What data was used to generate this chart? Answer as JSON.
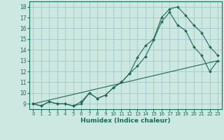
{
  "xlabel": "Humidex (Indice chaleur)",
  "xlim": [
    -0.5,
    23.5
  ],
  "ylim": [
    8.5,
    18.5
  ],
  "xticks": [
    0,
    1,
    2,
    3,
    4,
    5,
    6,
    7,
    8,
    9,
    10,
    11,
    12,
    13,
    14,
    15,
    16,
    17,
    18,
    19,
    20,
    21,
    22,
    23
  ],
  "yticks": [
    9,
    10,
    11,
    12,
    13,
    14,
    15,
    16,
    17,
    18
  ],
  "background_color": "#cce8e0",
  "grid_color": "#aacccc",
  "line_color": "#1a6b5a",
  "line1_x": [
    0,
    1,
    2,
    3,
    4,
    5,
    6,
    7,
    8,
    9,
    10,
    11,
    12,
    13,
    14,
    15,
    16,
    17,
    18,
    19,
    20,
    21,
    22,
    23
  ],
  "line1_y": [
    9.0,
    8.8,
    9.2,
    9.0,
    9.0,
    8.8,
    9.0,
    10.0,
    9.5,
    9.8,
    10.5,
    11.0,
    11.8,
    13.3,
    14.4,
    15.0,
    17.0,
    17.8,
    18.0,
    17.2,
    16.3,
    15.6,
    14.3,
    13.5
  ],
  "line2_x": [
    0,
    1,
    2,
    3,
    4,
    5,
    6,
    7,
    8,
    9,
    10,
    11,
    12,
    13,
    14,
    15,
    16,
    17,
    18,
    19,
    20,
    21,
    22,
    23
  ],
  "line2_y": [
    9.0,
    8.8,
    9.2,
    9.0,
    9.0,
    8.8,
    9.2,
    10.0,
    9.5,
    9.8,
    10.5,
    11.0,
    11.8,
    12.5,
    13.4,
    14.9,
    16.6,
    17.5,
    16.3,
    15.8,
    14.3,
    13.5,
    12.0,
    13.0
  ],
  "line3_x": [
    0,
    23
  ],
  "line3_y": [
    9.0,
    13.0
  ]
}
